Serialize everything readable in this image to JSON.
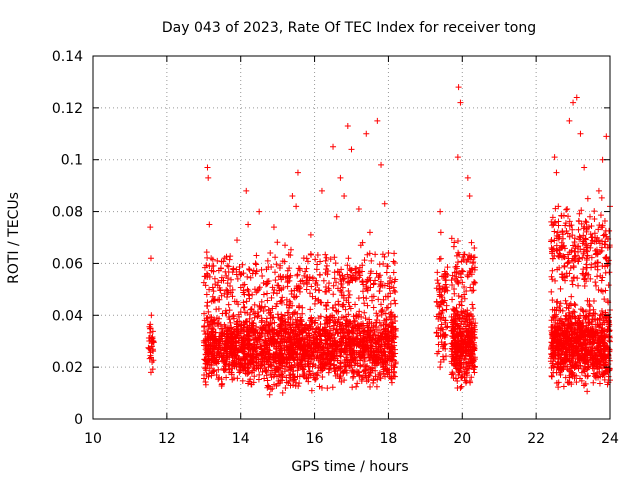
{
  "chart_data": {
    "type": "scatter",
    "title": "Day 043 of 2023, Rate Of TEC Index for receiver tong",
    "xlabel": "GPS time / hours",
    "ylabel": "ROTI / TECUs",
    "xlim": [
      10,
      24
    ],
    "ylim": [
      0,
      0.14
    ],
    "xticks": [
      "10",
      "12",
      "14",
      "16",
      "18",
      "20",
      "22",
      "24"
    ],
    "yticks": [
      "0",
      "0.02",
      "0.04",
      "0.06",
      "0.08",
      "0.1",
      "0.12",
      "0.14"
    ],
    "grid": true,
    "marker": "+",
    "color": "#ff0000",
    "series": [
      {
        "points": [
          [
            11.55,
            0.074
          ],
          [
            11.57,
            0.062
          ],
          [
            11.58,
            0.04
          ],
          [
            11.56,
            0.035
          ],
          [
            11.59,
            0.028
          ],
          [
            11.6,
            0.022
          ],
          [
            11.57,
            0.018
          ],
          [
            11.61,
            0.031
          ],
          [
            13.1,
            0.097
          ],
          [
            13.12,
            0.093
          ],
          [
            13.15,
            0.075
          ],
          [
            13.2,
            0.062
          ],
          [
            13.05,
            0.055
          ],
          [
            13.1,
            0.045
          ],
          [
            13.25,
            0.038
          ],
          [
            13.3,
            0.03
          ],
          [
            13.4,
            0.026
          ],
          [
            13.5,
            0.033
          ],
          [
            13.6,
            0.021
          ],
          [
            13.7,
            0.042
          ],
          [
            13.8,
            0.058
          ],
          [
            13.9,
            0.069
          ],
          [
            14.0,
            0.036
          ],
          [
            14.1,
            0.048
          ],
          [
            14.15,
            0.088
          ],
          [
            14.2,
            0.075
          ],
          [
            14.3,
            0.028
          ],
          [
            14.4,
            0.06
          ],
          [
            14.5,
            0.08
          ],
          [
            14.6,
            0.035
          ],
          [
            14.7,
            0.022
          ],
          [
            14.8,
            0.064
          ],
          [
            14.9,
            0.074
          ],
          [
            15.0,
            0.03
          ],
          [
            15.1,
            0.05
          ],
          [
            15.2,
            0.067
          ],
          [
            15.3,
            0.041
          ],
          [
            15.4,
            0.086
          ],
          [
            15.5,
            0.082
          ],
          [
            15.55,
            0.095
          ],
          [
            15.6,
            0.058
          ],
          [
            15.7,
            0.027
          ],
          [
            15.8,
            0.052
          ],
          [
            15.9,
            0.071
          ],
          [
            16.0,
            0.037
          ],
          [
            16.1,
            0.046
          ],
          [
            16.2,
            0.088
          ],
          [
            16.3,
            0.061
          ],
          [
            16.4,
            0.033
          ],
          [
            16.5,
            0.105
          ],
          [
            16.6,
            0.078
          ],
          [
            16.7,
            0.093
          ],
          [
            16.8,
            0.086
          ],
          [
            16.9,
            0.113
          ],
          [
            17.0,
            0.104
          ],
          [
            17.1,
            0.058
          ],
          [
            17.2,
            0.081
          ],
          [
            17.3,
            0.068
          ],
          [
            17.4,
            0.11
          ],
          [
            17.5,
            0.072
          ],
          [
            17.6,
            0.043
          ],
          [
            17.7,
            0.115
          ],
          [
            17.8,
            0.098
          ],
          [
            17.9,
            0.083
          ],
          [
            18.0,
            0.064
          ],
          [
            18.1,
            0.04
          ],
          [
            17.85,
            0.02
          ],
          [
            17.5,
            0.018
          ],
          [
            16.8,
            0.015
          ],
          [
            16.2,
            0.012
          ],
          [
            15.5,
            0.014
          ],
          [
            14.5,
            0.017
          ],
          [
            19.4,
            0.08
          ],
          [
            19.42,
            0.072
          ],
          [
            19.45,
            0.055
          ],
          [
            19.5,
            0.045
          ],
          [
            19.35,
            0.032
          ],
          [
            19.4,
            0.02
          ],
          [
            19.48,
            0.028
          ],
          [
            19.55,
            0.038
          ],
          [
            19.9,
            0.128
          ],
          [
            19.95,
            0.122
          ],
          [
            19.88,
            0.101
          ],
          [
            19.85,
            0.058
          ],
          [
            19.8,
            0.042
          ],
          [
            19.9,
            0.03
          ],
          [
            20.0,
            0.024
          ],
          [
            20.1,
            0.019
          ],
          [
            20.15,
            0.093
          ],
          [
            20.2,
            0.086
          ],
          [
            20.25,
            0.068
          ],
          [
            20.3,
            0.052
          ],
          [
            20.2,
            0.04
          ],
          [
            20.1,
            0.014
          ],
          [
            19.95,
            0.012
          ],
          [
            20.05,
            0.048
          ],
          [
            22.5,
            0.101
          ],
          [
            22.55,
            0.095
          ],
          [
            22.6,
            0.082
          ],
          [
            22.7,
            0.066
          ],
          [
            22.5,
            0.04
          ],
          [
            22.8,
            0.03
          ],
          [
            22.9,
            0.115
          ],
          [
            23.0,
            0.122
          ],
          [
            23.1,
            0.124
          ],
          [
            23.2,
            0.11
          ],
          [
            23.3,
            0.097
          ],
          [
            23.4,
            0.085
          ],
          [
            23.5,
            0.07
          ],
          [
            23.6,
            0.06
          ],
          [
            23.7,
            0.088
          ],
          [
            23.8,
            0.1
          ],
          [
            23.9,
            0.109
          ],
          [
            24.0,
            0.082
          ],
          [
            23.95,
            0.045
          ],
          [
            23.85,
            0.032
          ],
          [
            23.75,
            0.021
          ],
          [
            23.6,
            0.017
          ],
          [
            23.3,
            0.013
          ],
          [
            22.9,
            0.016
          ],
          [
            22.7,
            0.022
          ],
          [
            23.0,
            0.028
          ],
          [
            23.2,
            0.035
          ],
          [
            23.45,
            0.042
          ],
          [
            23.65,
            0.055
          ],
          [
            23.9,
            0.062
          ],
          [
            22.6,
            0.025
          ],
          [
            24.0,
            0.015
          ]
        ]
      }
    ],
    "clusters": [
      {
        "x": [
          11.5,
          11.65
        ],
        "y": [
          0.017,
          0.042
        ],
        "count": 30
      },
      {
        "x": [
          13.0,
          18.2
        ],
        "y": [
          0.008,
          0.048
        ],
        "count": 2200
      },
      {
        "x": [
          13.0,
          18.2
        ],
        "y": [
          0.035,
          0.07
        ],
        "count": 420
      },
      {
        "x": [
          19.3,
          19.6
        ],
        "y": [
          0.015,
          0.07
        ],
        "count": 90
      },
      {
        "x": [
          19.7,
          20.35
        ],
        "y": [
          0.008,
          0.05
        ],
        "count": 380
      },
      {
        "x": [
          19.7,
          20.35
        ],
        "y": [
          0.04,
          0.075
        ],
        "count": 70
      },
      {
        "x": [
          22.4,
          24.0
        ],
        "y": [
          0.008,
          0.05
        ],
        "count": 900
      },
      {
        "x": [
          22.4,
          24.0
        ],
        "y": [
          0.04,
          0.09
        ],
        "count": 260
      }
    ]
  }
}
